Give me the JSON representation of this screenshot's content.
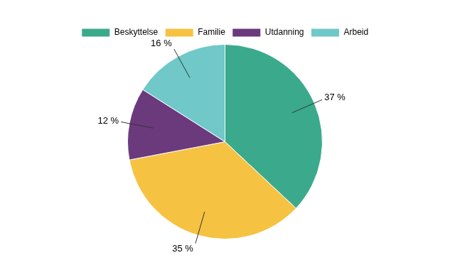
{
  "chart_data": {
    "type": "pie",
    "categories": [
      "Beskyttelse",
      "Familie",
      "Utdanning",
      "Arbeid"
    ],
    "values": [
      37,
      35,
      12,
      16
    ],
    "value_labels": [
      "37 %",
      "35 %",
      "12 %",
      "16 %"
    ],
    "colors": [
      "#3BAA8C",
      "#F5C242",
      "#6B3A7D",
      "#70C8C8"
    ],
    "data_labels": true,
    "legend": "top"
  }
}
